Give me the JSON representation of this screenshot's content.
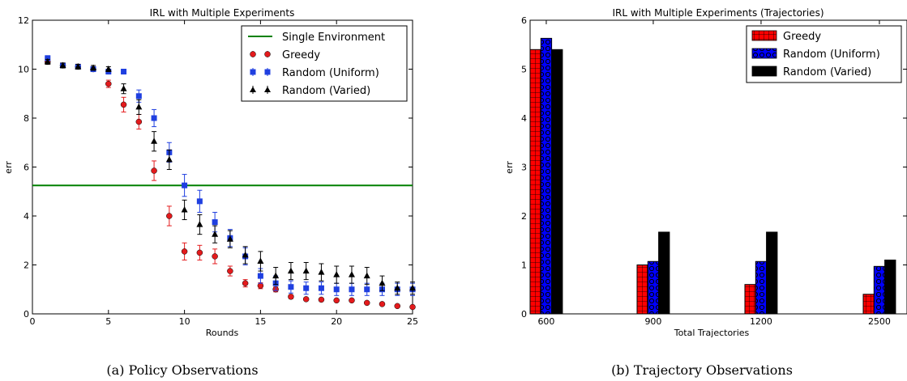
{
  "chart_data": [
    {
      "type": "scatter",
      "title": "IRL with Multiple Experiments",
      "xlabel": "Rounds",
      "ylabel": "err",
      "caption": "(a) Policy Observations",
      "xlim": [
        0,
        25
      ],
      "ylim": [
        0,
        12
      ],
      "xticks": [
        "0",
        "5",
        "10",
        "15",
        "20",
        "25"
      ],
      "yticks": [
        "0",
        "2",
        "4",
        "6",
        "8",
        "10",
        "12"
      ],
      "legend_position": "top-right",
      "hline": {
        "name": "Single Environment",
        "y": 5.25,
        "color": "#008000"
      },
      "series": [
        {
          "name": "Greedy",
          "marker": "circle",
          "color": "#e41a1c",
          "x": [
            1,
            2,
            3,
            4,
            5,
            6,
            7,
            8,
            9,
            10,
            11,
            12,
            13,
            14,
            15,
            16,
            17,
            18,
            19,
            20,
            21,
            22,
            23,
            24,
            25
          ],
          "values": [
            10.3,
            10.15,
            10.1,
            10.0,
            9.4,
            8.55,
            7.85,
            5.85,
            4.0,
            2.55,
            2.5,
            2.35,
            1.75,
            1.25,
            1.15,
            1.0,
            0.7,
            0.6,
            0.58,
            0.55,
            0.55,
            0.45,
            0.4,
            0.32,
            0.28
          ],
          "err": [
            0.1,
            0.1,
            0.1,
            0.1,
            0.15,
            0.3,
            0.3,
            0.4,
            0.4,
            0.35,
            0.3,
            0.3,
            0.2,
            0.15,
            0.12,
            0.1,
            0.08,
            0.06,
            0.05,
            0.05,
            0.05,
            0.05,
            0.05,
            0.05,
            0.05
          ]
        },
        {
          "name": "Random (Uniform)",
          "marker": "square",
          "color": "#1f3fe0",
          "x": [
            1,
            2,
            3,
            4,
            5,
            6,
            7,
            8,
            9,
            10,
            11,
            12,
            13,
            14,
            15,
            16,
            17,
            18,
            19,
            20,
            21,
            22,
            23,
            24,
            25
          ],
          "values": [
            10.45,
            10.15,
            10.1,
            10.0,
            9.9,
            9.9,
            8.9,
            8.0,
            6.6,
            5.25,
            4.6,
            3.75,
            3.1,
            2.35,
            1.55,
            1.25,
            1.1,
            1.05,
            1.05,
            1.0,
            1.0,
            1.0,
            1.0,
            1.0,
            1.0
          ],
          "err": [
            0.1,
            0.1,
            0.1,
            0.1,
            0.1,
            0.1,
            0.25,
            0.35,
            0.4,
            0.45,
            0.45,
            0.4,
            0.35,
            0.35,
            0.3,
            0.3,
            0.25,
            0.25,
            0.25,
            0.25,
            0.25,
            0.25,
            0.25,
            0.25,
            0.25
          ]
        },
        {
          "name": "Random (Varied)",
          "marker": "triangle",
          "color": "#000000",
          "x": [
            1,
            2,
            3,
            4,
            5,
            6,
            7,
            8,
            9,
            10,
            11,
            12,
            13,
            14,
            15,
            16,
            17,
            18,
            19,
            20,
            21,
            22,
            23,
            24,
            25
          ],
          "values": [
            10.3,
            10.15,
            10.1,
            10.05,
            10.0,
            9.2,
            8.45,
            7.05,
            6.3,
            4.25,
            3.65,
            3.25,
            3.05,
            2.4,
            2.15,
            1.55,
            1.75,
            1.75,
            1.7,
            1.6,
            1.6,
            1.55,
            1.25,
            1.05,
            1.05
          ],
          "err": [
            0.1,
            0.1,
            0.1,
            0.1,
            0.1,
            0.2,
            0.3,
            0.4,
            0.4,
            0.4,
            0.4,
            0.35,
            0.35,
            0.35,
            0.4,
            0.35,
            0.35,
            0.35,
            0.35,
            0.35,
            0.35,
            0.35,
            0.3,
            0.25,
            0.25
          ]
        }
      ]
    },
    {
      "type": "bar",
      "title": "IRL with Multiple Experiments (Trajectories)",
      "xlabel": "Total Trajectories",
      "ylabel": "err",
      "caption": "(b) Trajectory Observations",
      "categories": [
        "600",
        "900",
        "1200",
        "2500"
      ],
      "ylim": [
        0,
        6
      ],
      "yticks": [
        "0",
        "1",
        "2",
        "3",
        "4",
        "5",
        "6"
      ],
      "legend_position": "top-right",
      "series": [
        {
          "name": "Greedy",
          "color": "#ff0000",
          "pattern": "grid",
          "values": [
            5.4,
            1.0,
            0.6,
            0.4
          ]
        },
        {
          "name": "Random (Uniform)",
          "color": "#0000ff",
          "pattern": "circles",
          "values": [
            5.63,
            1.07,
            1.07,
            0.97
          ]
        },
        {
          "name": "Random (Varied)",
          "color": "#000000",
          "pattern": "solid",
          "values": [
            5.4,
            1.67,
            1.67,
            1.1
          ]
        }
      ]
    }
  ]
}
